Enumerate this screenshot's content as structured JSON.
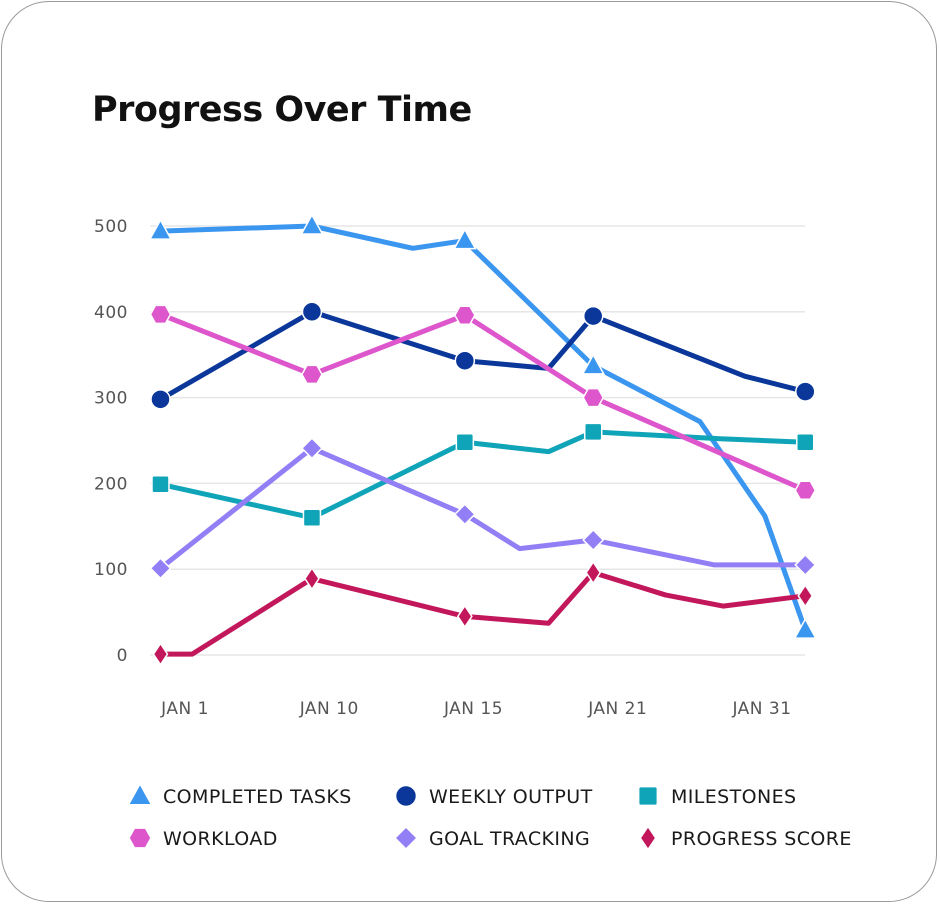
{
  "chart_data": {
    "type": "line",
    "title": "Progress Over Time",
    "xlabel": "",
    "ylabel": "",
    "x_ticks": [
      "JAN 1",
      "JAN 10",
      "JAN 15",
      "JAN 21",
      "JAN 31"
    ],
    "y_ticks": [
      0,
      100,
      200,
      300,
      400,
      500
    ],
    "ylim": [
      0,
      500
    ],
    "grid": true,
    "legend_position": "bottom",
    "x_units": "position on the category axis (0 = JAN 1, 1 = JAN 10, 2 = JAN 15, 3 = JAN 21, 4 = JAN 31)",
    "series": [
      {
        "name": "COMPLETED TASKS",
        "color": "#3b96f0",
        "marker": "triangle",
        "points": [
          [
            -0.17,
            494,
            true
          ],
          [
            0.88,
            500,
            true
          ],
          [
            1.58,
            474,
            false
          ],
          [
            1.94,
            483,
            true
          ],
          [
            2.83,
            337,
            true
          ],
          [
            3.57,
            272,
            false
          ],
          [
            4.02,
            162,
            false
          ],
          [
            4.3,
            29,
            true
          ]
        ]
      },
      {
        "name": "WEEKLY OUTPUT",
        "color": "#0a3799",
        "marker": "circle",
        "points": [
          [
            -0.17,
            298,
            true
          ],
          [
            0.88,
            400,
            true
          ],
          [
            1.94,
            343,
            true
          ],
          [
            2.52,
            334,
            false
          ],
          [
            2.83,
            395,
            true
          ],
          [
            3.88,
            325,
            false
          ],
          [
            4.3,
            307,
            true
          ]
        ]
      },
      {
        "name": "MILESTONES",
        "color": "#10a4b8",
        "marker": "square",
        "points": [
          [
            -0.17,
            199,
            true
          ],
          [
            0.88,
            160,
            true
          ],
          [
            1.94,
            248,
            true
          ],
          [
            2.52,
            237,
            false
          ],
          [
            2.83,
            260,
            true
          ],
          [
            3.71,
            252,
            false
          ],
          [
            4.3,
            248,
            true
          ]
        ]
      },
      {
        "name": "WORKLOAD",
        "color": "#de56cc",
        "marker": "hexagon",
        "points": [
          [
            -0.17,
            397,
            true
          ],
          [
            0.88,
            327,
            true
          ],
          [
            1.94,
            396,
            true
          ],
          [
            2.83,
            300,
            true
          ],
          [
            4.3,
            192,
            true
          ]
        ]
      },
      {
        "name": "GOAL TRACKING",
        "color": "#937ff5",
        "marker": "diamond",
        "points": [
          [
            -0.17,
            101,
            true
          ],
          [
            0.88,
            241,
            true
          ],
          [
            1.94,
            164,
            true
          ],
          [
            2.32,
            124,
            false
          ],
          [
            2.83,
            134,
            true
          ],
          [
            3.67,
            105,
            false
          ],
          [
            4.3,
            105,
            true
          ]
        ]
      },
      {
        "name": "PROGRESS SCORE",
        "color": "#c2185b",
        "marker": "thin-diamond",
        "points": [
          [
            -0.17,
            1,
            true
          ],
          [
            0.05,
            1,
            false
          ],
          [
            0.88,
            89,
            true
          ],
          [
            1.94,
            45,
            true
          ],
          [
            2.52,
            37,
            false
          ],
          [
            2.83,
            96,
            true
          ],
          [
            3.33,
            70,
            false
          ],
          [
            3.73,
            57,
            false
          ],
          [
            4.3,
            69,
            true
          ]
        ]
      }
    ]
  }
}
